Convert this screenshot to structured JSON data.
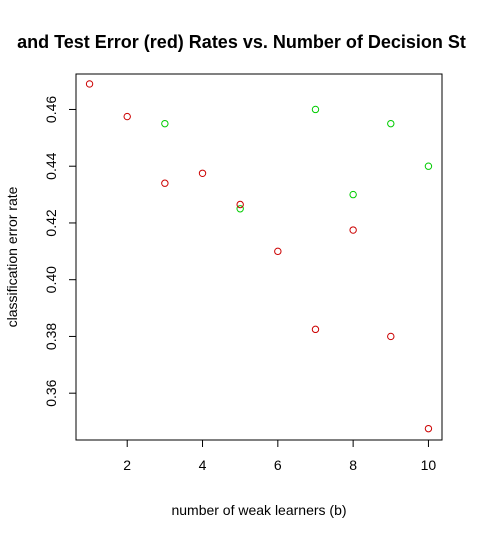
{
  "chart_data": {
    "type": "scatter",
    "title": "and Test Error (red) Rates vs. Number of Decision St",
    "xlabel": "number of weak learners (b)",
    "ylabel": "classification error rate",
    "xlim": [
      0.64,
      10.36
    ],
    "ylim": [
      0.3435,
      0.4725
    ],
    "xticks": [
      2,
      4,
      6,
      8,
      10
    ],
    "yticks": [
      0.36,
      0.38,
      0.4,
      0.42,
      0.44,
      0.46
    ],
    "ytick_labels": [
      "0.36",
      "0.38",
      "0.40",
      "0.42",
      "0.44",
      "0.46"
    ],
    "grid": false,
    "series": [
      {
        "color": "#00cc00",
        "x": [
          3,
          5,
          7,
          8,
          9,
          10
        ],
        "y": [
          0.455,
          0.425,
          0.46,
          0.43,
          0.455,
          0.44
        ]
      },
      {
        "color": "#cc0000",
        "x": [
          1,
          2,
          3,
          4,
          5,
          6,
          7,
          8,
          9,
          10
        ],
        "y": [
          0.469,
          0.4575,
          0.434,
          0.4375,
          0.4265,
          0.41,
          0.3825,
          0.4175,
          0.38,
          0.3475
        ]
      }
    ]
  }
}
